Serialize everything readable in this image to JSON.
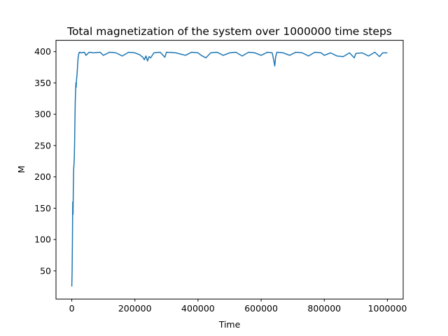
{
  "chart_data": {
    "type": "line",
    "title": "Total magnetization of the system over 1000000 time steps",
    "xlabel": "Time",
    "ylabel": "M",
    "xlim": [
      -50000,
      1050000
    ],
    "ylim": [
      5,
      418
    ],
    "xticks": [
      0,
      200000,
      400000,
      600000,
      800000,
      1000000
    ],
    "yticks": [
      50,
      100,
      150,
      200,
      250,
      300,
      350,
      400
    ],
    "grid": false,
    "legend": "none",
    "series": [
      {
        "color": "#1f77b4",
        "points": [
          [
            0,
            25
          ],
          [
            1000,
            48
          ],
          [
            2000,
            92
          ],
          [
            3000,
            160
          ],
          [
            4000,
            140
          ],
          [
            5000,
            185
          ],
          [
            6000,
            212
          ],
          [
            7000,
            220
          ],
          [
            8000,
            230
          ],
          [
            9000,
            255
          ],
          [
            10000,
            290
          ],
          [
            11000,
            320
          ],
          [
            12000,
            335
          ],
          [
            13000,
            350
          ],
          [
            14000,
            343
          ],
          [
            15000,
            355
          ],
          [
            16000,
            360
          ],
          [
            17000,
            366
          ],
          [
            18000,
            374
          ],
          [
            19000,
            382
          ],
          [
            20000,
            390
          ],
          [
            22000,
            396
          ],
          [
            24000,
            399
          ],
          [
            30000,
            398
          ],
          [
            40000,
            399
          ],
          [
            45000,
            394
          ],
          [
            55000,
            399
          ],
          [
            70000,
            398
          ],
          [
            90000,
            399
          ],
          [
            100000,
            394
          ],
          [
            120000,
            399
          ],
          [
            140000,
            398
          ],
          [
            160000,
            393
          ],
          [
            180000,
            399
          ],
          [
            200000,
            398
          ],
          [
            215000,
            395
          ],
          [
            225000,
            391
          ],
          [
            230000,
            387
          ],
          [
            235000,
            393
          ],
          [
            240000,
            385
          ],
          [
            245000,
            392
          ],
          [
            250000,
            390
          ],
          [
            260000,
            398
          ],
          [
            280000,
            399
          ],
          [
            295000,
            391
          ],
          [
            300000,
            399
          ],
          [
            330000,
            398
          ],
          [
            360000,
            394
          ],
          [
            380000,
            399
          ],
          [
            400000,
            398
          ],
          [
            410000,
            394
          ],
          [
            425000,
            390
          ],
          [
            440000,
            398
          ],
          [
            460000,
            399
          ],
          [
            480000,
            394
          ],
          [
            500000,
            398
          ],
          [
            520000,
            399
          ],
          [
            540000,
            393
          ],
          [
            560000,
            399
          ],
          [
            580000,
            398
          ],
          [
            600000,
            394
          ],
          [
            620000,
            399
          ],
          [
            635000,
            398
          ],
          [
            640000,
            386
          ],
          [
            643000,
            377
          ],
          [
            646000,
            392
          ],
          [
            650000,
            399
          ],
          [
            670000,
            398
          ],
          [
            690000,
            394
          ],
          [
            710000,
            399
          ],
          [
            730000,
            398
          ],
          [
            750000,
            393
          ],
          [
            770000,
            399
          ],
          [
            790000,
            398
          ],
          [
            800000,
            394
          ],
          [
            820000,
            398
          ],
          [
            840000,
            393
          ],
          [
            860000,
            392
          ],
          [
            880000,
            398
          ],
          [
            895000,
            390
          ],
          [
            900000,
            397
          ],
          [
            920000,
            398
          ],
          [
            940000,
            393
          ],
          [
            960000,
            399
          ],
          [
            975000,
            392
          ],
          [
            985000,
            398
          ],
          [
            1000000,
            398
          ]
        ]
      }
    ]
  }
}
